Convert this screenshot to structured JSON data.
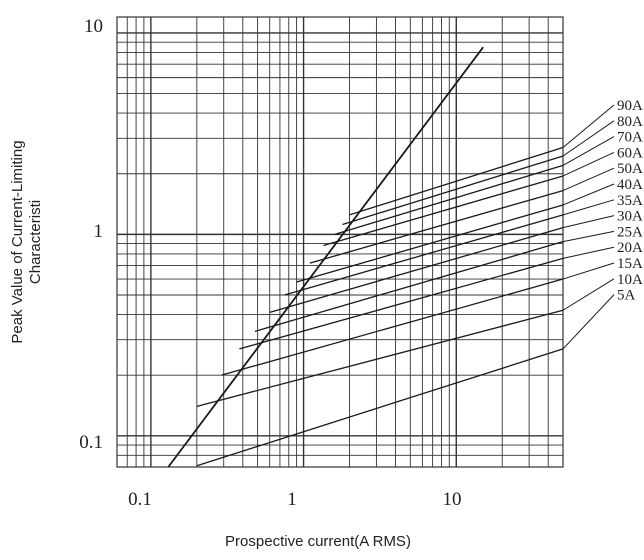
{
  "chart_data": {
    "type": "line",
    "title": "",
    "xlabel": "Prospective current(A RMS)",
    "ylabel_lines": [
      "Peak  Value of Current-Limiting",
      "Characteristi"
    ],
    "x_scale": "log",
    "y_scale": "log",
    "xlim": [
      0.06,
      50
    ],
    "ylim": [
      0.07,
      12
    ],
    "x_tick_labels": [
      "0.1",
      "1",
      "10"
    ],
    "y_tick_labels": [
      "10",
      "1",
      "0.1"
    ],
    "grid": true,
    "line_color": "#1a1a1a",
    "grid_color": "#333333",
    "envelope": {
      "name": "",
      "x": [
        0.13,
        15
      ],
      "y": [
        0.07,
        8.5
      ]
    },
    "series": [
      {
        "label": "90A",
        "x": [
          2.0,
          50
        ],
        "y": [
          1.25,
          2.7
        ]
      },
      {
        "label": "80A",
        "x": [
          1.8,
          50
        ],
        "y": [
          1.12,
          2.45
        ]
      },
      {
        "label": "70A",
        "x": [
          1.6,
          50
        ],
        "y": [
          1.0,
          2.2
        ]
      },
      {
        "label": "60A",
        "x": [
          1.35,
          50
        ],
        "y": [
          0.88,
          1.95
        ]
      },
      {
        "label": "50A",
        "x": [
          1.1,
          50
        ],
        "y": [
          0.72,
          1.65
        ]
      },
      {
        "label": "40A",
        "x": [
          0.9,
          50
        ],
        "y": [
          0.58,
          1.4
        ]
      },
      {
        "label": "35A",
        "x": [
          0.75,
          50
        ],
        "y": [
          0.5,
          1.25
        ]
      },
      {
        "label": "30A",
        "x": [
          0.6,
          50
        ],
        "y": [
          0.41,
          1.08
        ]
      },
      {
        "label": "25A",
        "x": [
          0.48,
          50
        ],
        "y": [
          0.33,
          0.92
        ]
      },
      {
        "label": "20A",
        "x": [
          0.38,
          50
        ],
        "y": [
          0.27,
          0.76
        ]
      },
      {
        "label": "15A",
        "x": [
          0.29,
          50
        ],
        "y": [
          0.2,
          0.6
        ]
      },
      {
        "label": "10A",
        "x": [
          0.2,
          50
        ],
        "y": [
          0.14,
          0.42
        ]
      },
      {
        "label": "5A",
        "x": [
          0.2,
          50
        ],
        "y": [
          0.071,
          0.27
        ]
      }
    ]
  }
}
